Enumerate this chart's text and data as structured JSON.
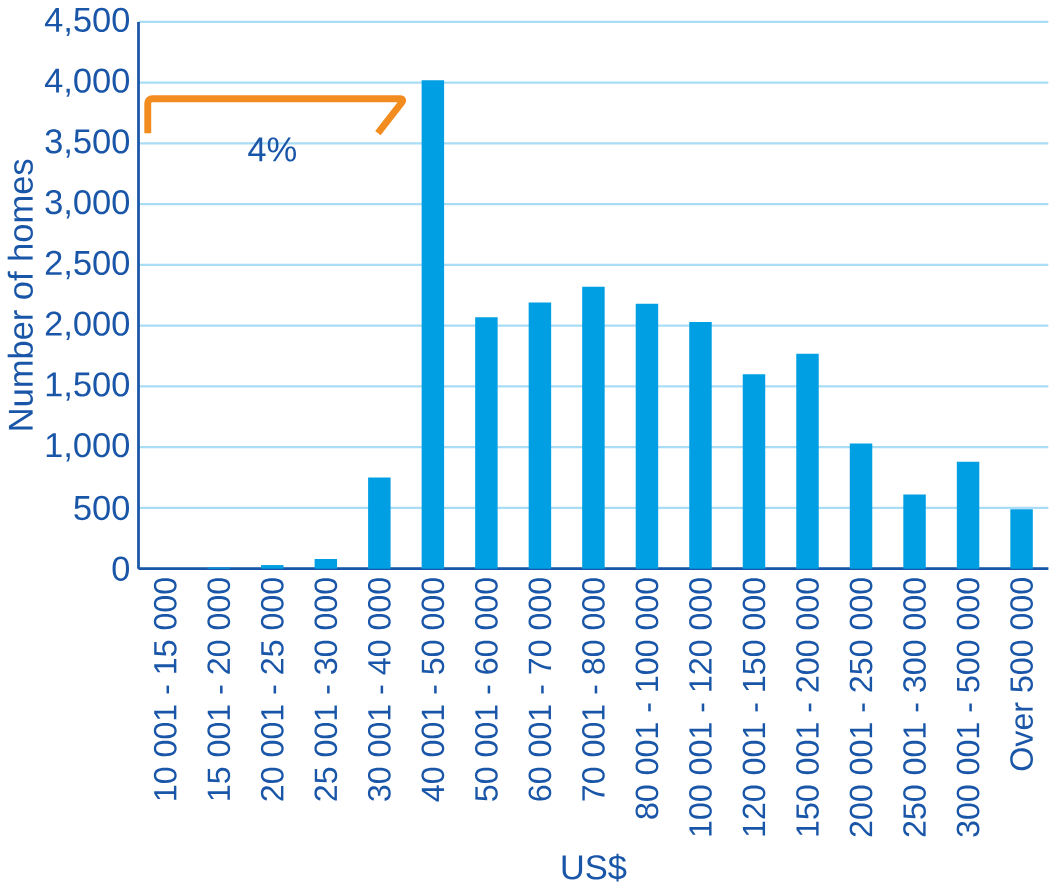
{
  "chart_data": {
    "type": "bar",
    "xlabel": "US$",
    "ylabel": "Number of homes",
    "categories": [
      "10 001 - 15 000",
      "15 001 - 20 000",
      "20 001 - 25 000",
      "25 001 - 30 000",
      "30 001 - 40 000",
      "40 001 - 50 000",
      "50 001 - 60 000",
      "60 001 - 70 000",
      "70 001 - 80 000",
      "80 001 - 100 000",
      "100 001 - 120 000",
      "120 001 - 150 000",
      "150 001 - 200 000",
      "200 001 - 250 000",
      "250 001 - 300 000",
      "300 001 - 500 000",
      "Over 500 000"
    ],
    "values": [
      0,
      10,
      30,
      80,
      750,
      4020,
      2070,
      2190,
      2320,
      2180,
      2030,
      1600,
      1770,
      1030,
      610,
      880,
      490
    ],
    "color": "#009fe3",
    "ylim": [
      0,
      4500
    ],
    "yticks": [
      0,
      {
        "value": 500,
        "label": "500"
      },
      {
        "value": 1000,
        "label": "1,000"
      },
      {
        "value": 1500,
        "label": "1,500"
      },
      {
        "value": 2000,
        "label": "2,000"
      },
      {
        "value": 2500,
        "label": "2,500"
      },
      {
        "value": 3000,
        "label": "3,000"
      },
      {
        "value": 3500,
        "label": "3,500"
      },
      {
        "value": 4000,
        "label": "4,000"
      },
      {
        "value": 4500,
        "label": "4,500"
      }
    ],
    "grid": "y",
    "annotations": [
      "4%"
    ]
  }
}
